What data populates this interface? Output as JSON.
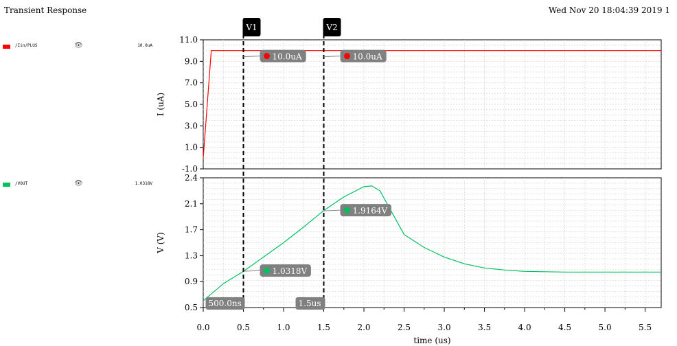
{
  "header": {
    "title": "Transient Response",
    "date": "Wed Nov 20 18:04:39 2019  1"
  },
  "legend": [
    {
      "name": "/Iin/PLUS",
      "value": "10.0uA",
      "color": "#ff0000",
      "icon": "eye-icon"
    },
    {
      "name": "/VOUT",
      "value": "1.0318V",
      "color": "#00c060",
      "icon": "eye-icon"
    }
  ],
  "chart_data": [
    {
      "type": "line",
      "ylabel": "I (uA)",
      "ylim": [
        -1.0,
        11.0
      ],
      "yticks": [
        "11.0",
        "9.0",
        "7.0",
        "5.0",
        "3.0",
        "1.0",
        "-1.0"
      ],
      "grid": true,
      "series": [
        {
          "name": "/Iin/PLUS",
          "color": "#ff0000",
          "x": [
            0.0,
            0.1,
            5.7
          ],
          "y": [
            0.0,
            10.0,
            10.0
          ]
        }
      ]
    },
    {
      "type": "line",
      "xlabel": "time (us)",
      "ylabel": "V (V)",
      "ylim": [
        0.5,
        2.4
      ],
      "xlim": [
        0.0,
        5.7
      ],
      "yticks": [
        "2.4",
        "2.1",
        "1.7",
        "1.3",
        "0.9",
        "0.5"
      ],
      "xticks": [
        "0.0",
        "0.5",
        "1.0",
        "1.5",
        "2.0",
        "2.5",
        "3.0",
        "3.5",
        "4.0",
        "4.5",
        "5.0",
        "5.5"
      ],
      "grid": true,
      "series": [
        {
          "name": "/VOUT",
          "color": "#00c060",
          "x": [
            0.0,
            0.25,
            0.5,
            0.75,
            1.0,
            1.25,
            1.5,
            1.75,
            2.0,
            2.1,
            2.2,
            2.5,
            2.75,
            3.0,
            3.25,
            3.5,
            3.75,
            4.0,
            4.5,
            5.0,
            5.7
          ],
          "y": [
            0.6,
            0.85,
            1.03,
            1.24,
            1.45,
            1.68,
            1.92,
            2.12,
            2.27,
            2.28,
            2.21,
            1.57,
            1.38,
            1.24,
            1.14,
            1.08,
            1.05,
            1.03,
            1.02,
            1.02,
            1.02
          ]
        }
      ]
    }
  ],
  "cursors": [
    {
      "label": "V1",
      "x": 0.5,
      "delta": "500.0ns",
      "i_value": "10.0uA",
      "v_value": "1.0318V"
    },
    {
      "label": "V2",
      "x": 1.5,
      "delta": "1.5us",
      "i_value": "10.0uA",
      "v_value": "1.9164V"
    }
  ],
  "colors": {
    "grid": "#d8d8d8",
    "cursor": "#000000",
    "marker_bg": "#808080"
  }
}
